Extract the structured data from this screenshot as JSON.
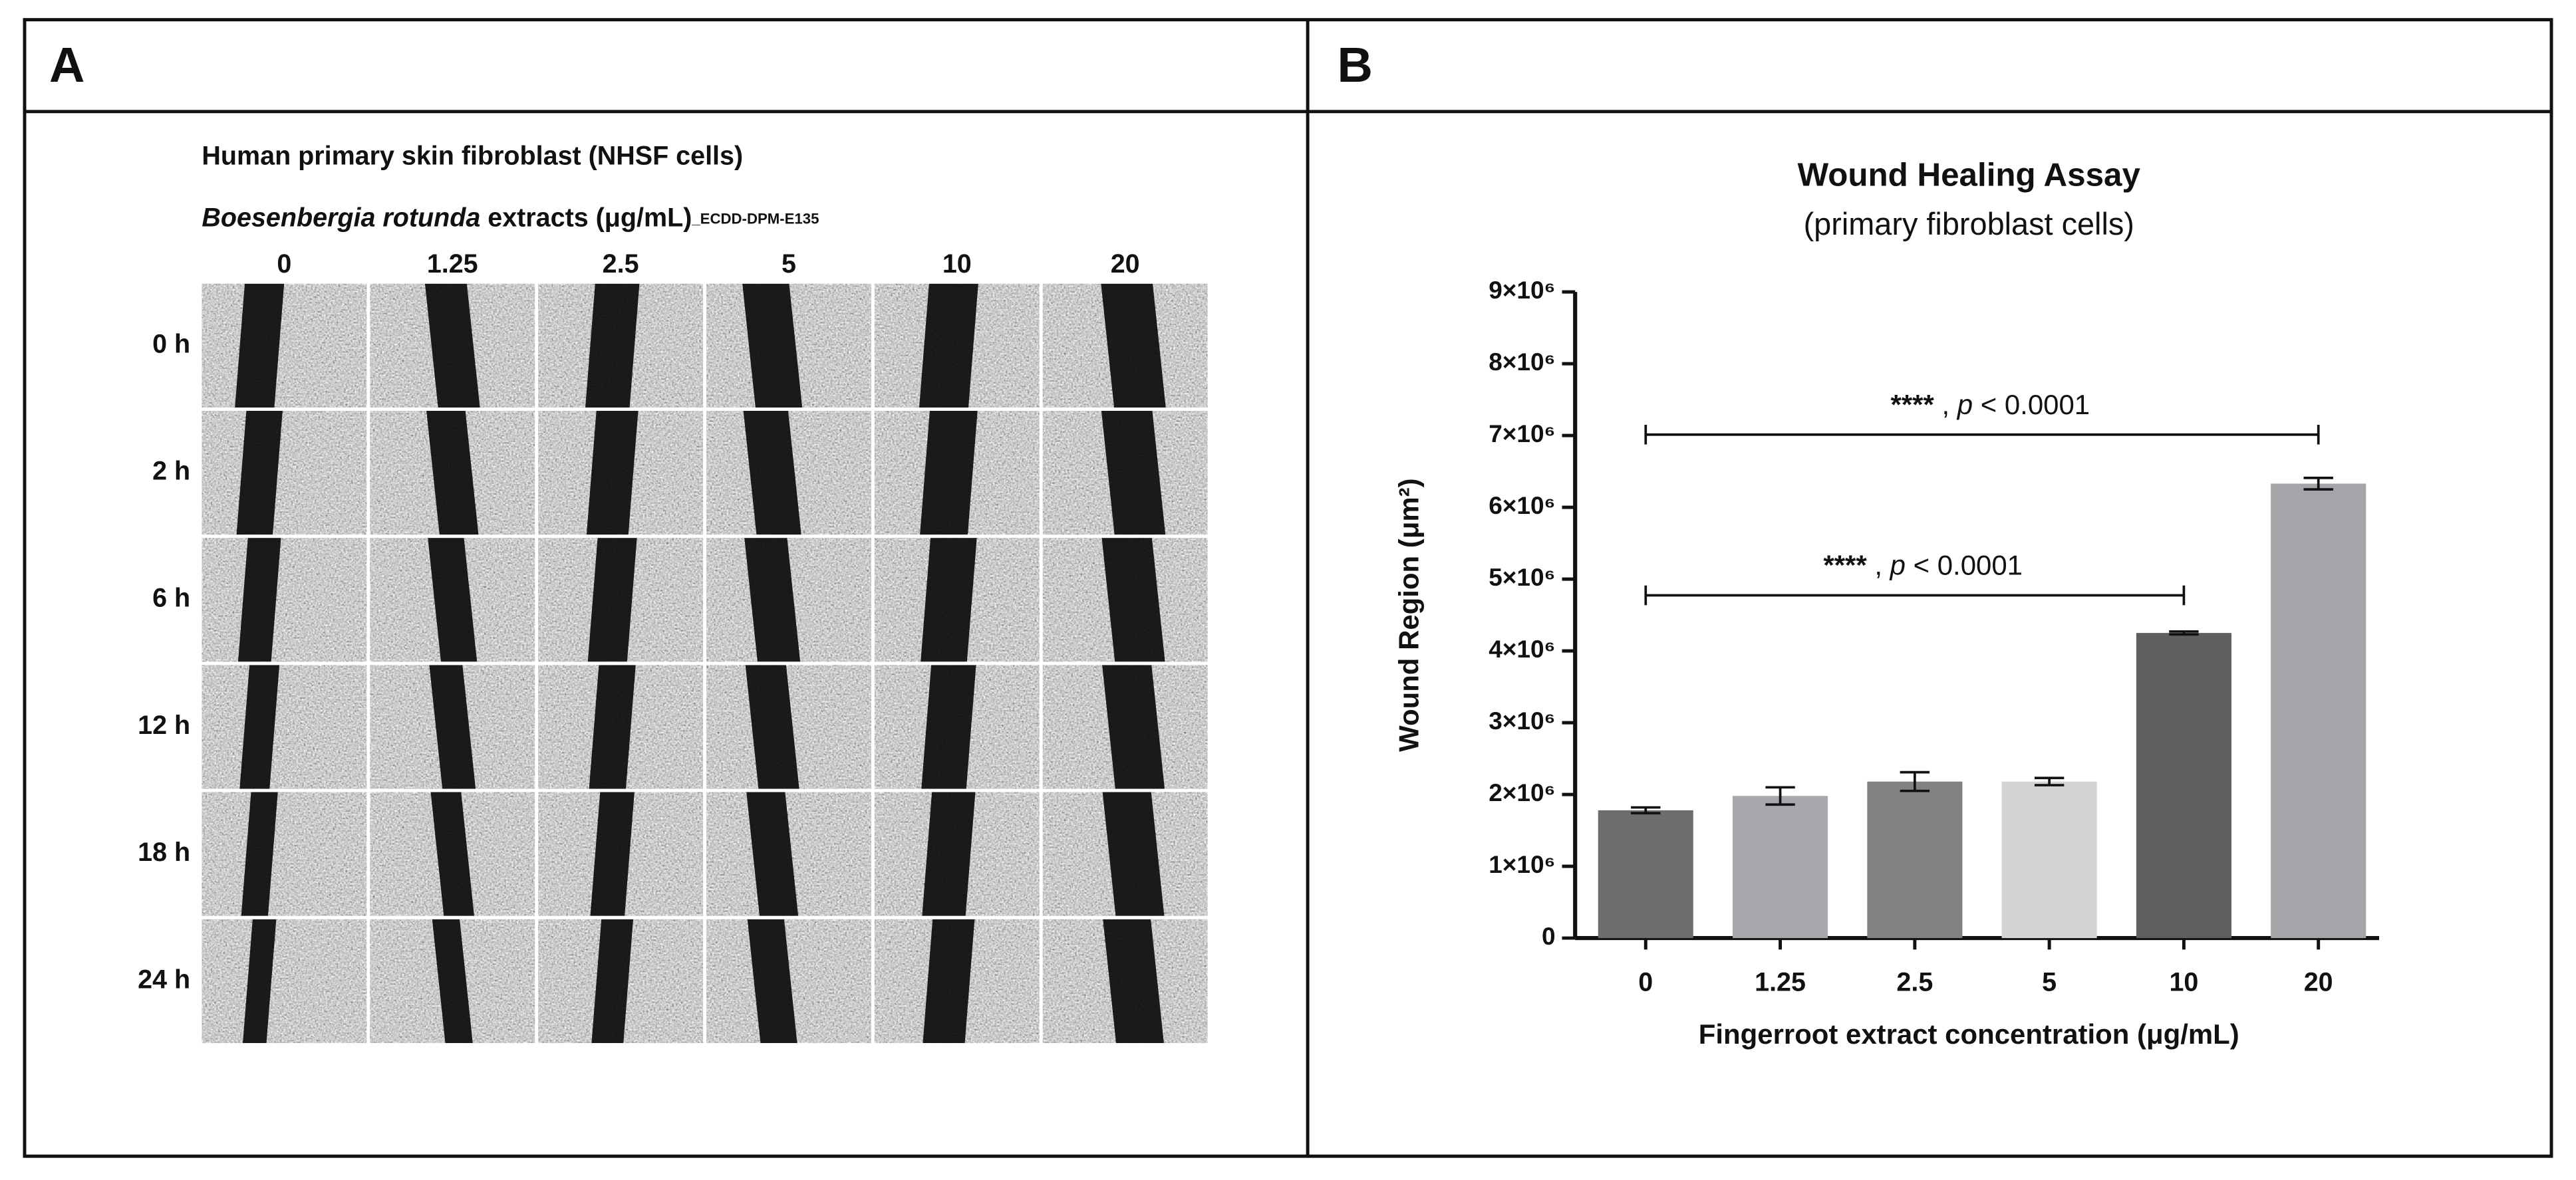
{
  "panel_a": {
    "label": "A",
    "title": "Human primary skin fibroblast (NHSF cells)",
    "subtitle_species": "Boesenbergia rotunda",
    "subtitle_text": " extracts (μg/mL)",
    "subtitle_code": "_ECDD-DPM-E135",
    "columns": [
      "0",
      "1.25",
      "2.5",
      "5",
      "10",
      "20"
    ],
    "rows": [
      "0 h",
      "2 h",
      "6 h",
      "12 h",
      "18 h",
      "24 h"
    ]
  },
  "panel_b": {
    "label": "B"
  },
  "chart_data": {
    "type": "bar",
    "title": "Wound Healing Assay",
    "subtitle": "(primary fibroblast cells)",
    "y_label": "Wound Region (μm²)",
    "x_label": "Fingerroot extract concentration (μg/mL)",
    "categories": [
      "0",
      "1.25",
      "2.5",
      "5",
      "10",
      "20"
    ],
    "values": [
      1780000,
      1980000,
      2180000,
      2180000,
      4250000,
      6330000
    ],
    "errors": [
      40000,
      120000,
      130000,
      50000,
      20000,
      80000
    ],
    "colors": [
      "#6d6d6d",
      "#a7a7ad",
      "#828282",
      "#d4d4d4",
      "#5f5f5f",
      "#a4a4a9"
    ],
    "ylim": [
      0,
      9000000
    ],
    "yticks": [
      0,
      {
        "value": 1000000,
        "label": "1×10⁶"
      },
      {
        "value": 2000000,
        "label": "2×10⁶"
      },
      {
        "value": 3000000,
        "label": "3×10⁶"
      },
      {
        "value": 4000000,
        "label": "4×10⁶"
      },
      {
        "value": 5000000,
        "label": "5×10⁶"
      },
      {
        "value": 6000000,
        "label": "6×10⁶"
      },
      {
        "value": 7000000,
        "label": "7×10⁶"
      },
      {
        "value": 8000000,
        "label": "8×10⁶"
      },
      {
        "value": 9000000,
        "label": "9×10⁶"
      }
    ],
    "annotations": [
      {
        "stars": "****",
        "sep": " , ",
        "p": "p",
        "rest": " < 0.0001"
      },
      {
        "stars": "****",
        "sep": " , ",
        "p": "p",
        "rest": " < 0.0001"
      }
    ]
  }
}
